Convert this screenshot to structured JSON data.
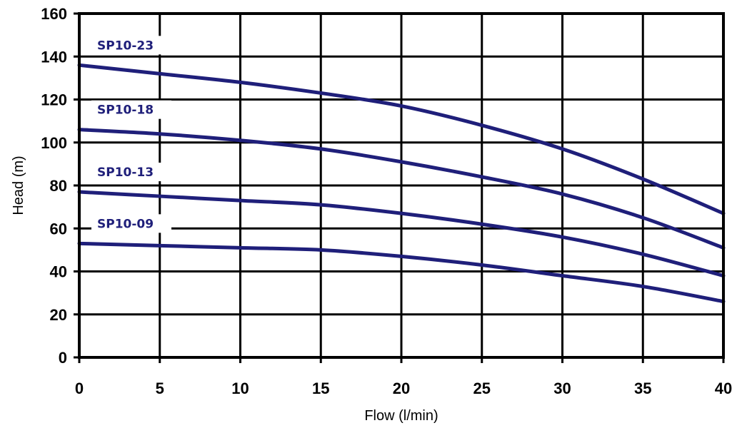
{
  "chart_data": {
    "type": "line",
    "title": "",
    "xlabel": "Flow (l/min)",
    "ylabel": "Head (m)",
    "xlim": [
      0,
      40
    ],
    "ylim": [
      0,
      160
    ],
    "xticks": [
      0,
      5,
      10,
      15,
      20,
      25,
      30,
      35,
      40
    ],
    "yticks": [
      0,
      20,
      40,
      60,
      80,
      100,
      120,
      140,
      160
    ],
    "grid": true,
    "line_color": "#1f1f7a",
    "grid_color": "#000000",
    "series": [
      {
        "name": "SP10-23",
        "x": [
          0,
          5,
          10,
          15,
          20,
          25,
          30,
          35,
          40
        ],
        "y": [
          136,
          132,
          128,
          123,
          117,
          108,
          97,
          83,
          67
        ]
      },
      {
        "name": "SP10-18",
        "x": [
          0,
          5,
          10,
          15,
          20,
          25,
          30,
          35,
          40
        ],
        "y": [
          106,
          104,
          101,
          97,
          91,
          84,
          76,
          65,
          51
        ]
      },
      {
        "name": "SP10-13",
        "x": [
          0,
          5,
          10,
          15,
          20,
          25,
          30,
          35,
          40
        ],
        "y": [
          77,
          75,
          73,
          71,
          67,
          62,
          56,
          48,
          38
        ]
      },
      {
        "name": "SP10-09",
        "x": [
          0,
          5,
          10,
          15,
          20,
          25,
          30,
          35,
          40
        ],
        "y": [
          53,
          52,
          51,
          50,
          47,
          43,
          38,
          33,
          26
        ]
      }
    ]
  }
}
